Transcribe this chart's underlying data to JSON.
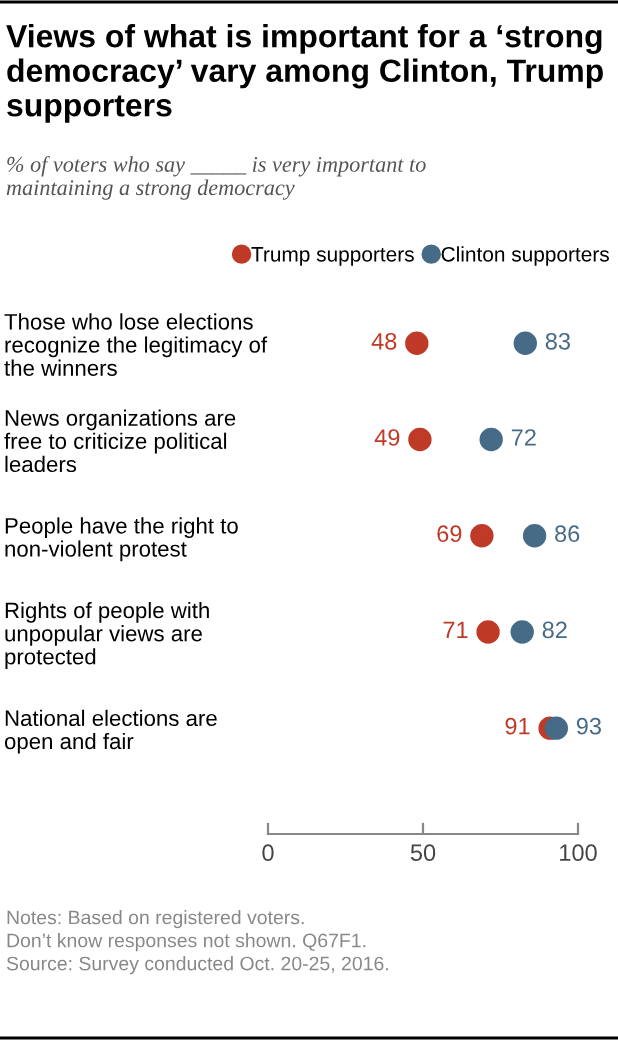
{
  "chart_data": {
    "type": "scatter",
    "orientation": "horizontal",
    "title": "Views of what is important for a ‘strong democracy’ vary among Clinton, Trump supporters",
    "subtitle": "% of voters who say _____ is very important to\nmaintaining a strong democracy",
    "categories": [
      "Those who lose elections\nrecognize the legitimacy of\nthe winners",
      "News organizations are\nfree to criticize political\nleaders",
      "People have the right to\nnon-violent protest",
      "Rights of people with\nunpopular views are\nprotected",
      "National elections are\nopen and fair"
    ],
    "series": [
      {
        "name": "Trump supporters",
        "color": "#bf3a27",
        "values": [
          48,
          49,
          69,
          71,
          91
        ]
      },
      {
        "name": "Clinton supporters",
        "color": "#466b87",
        "values": [
          83,
          72,
          86,
          82,
          93
        ]
      }
    ],
    "xlim": [
      0,
      100
    ],
    "xticks": [
      0,
      50,
      100
    ],
    "data_labels": true,
    "legend": "top right",
    "marker": "circle",
    "grid": false,
    "annotations": [
      "Notes: Based on registered voters.\nDon’t know responses not shown. Q67F1.\nSource: Survey conducted Oct. 20-25, 2016."
    ]
  }
}
